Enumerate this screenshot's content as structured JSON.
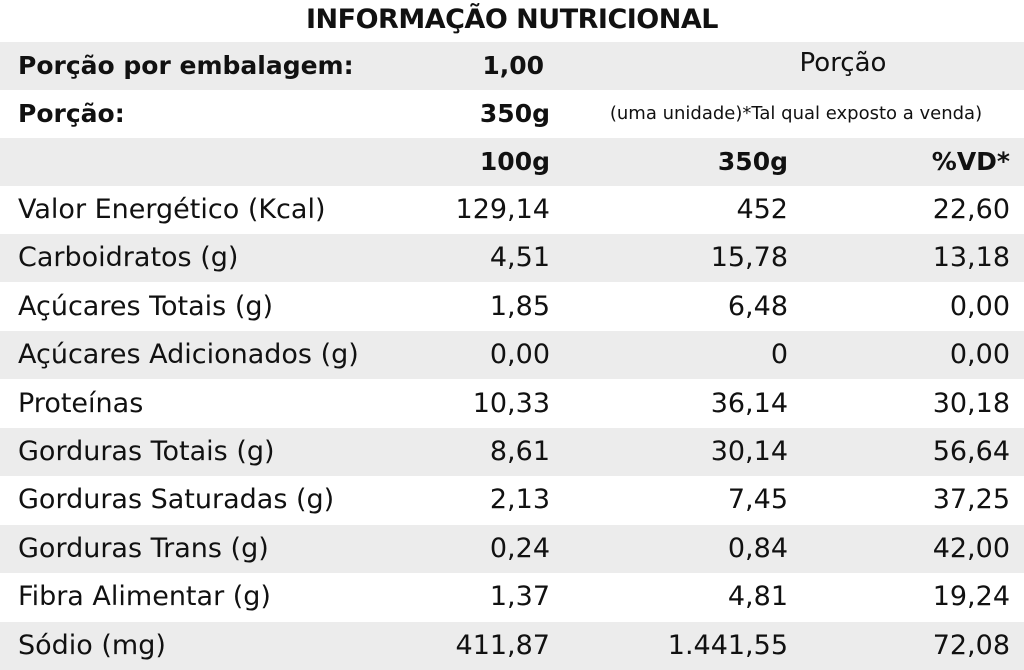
{
  "title": "INFORMAÇÃO NUTRICIONAL",
  "header": {
    "servings_label": "Porção por embalagem:",
    "servings_value": "1,00",
    "portion_word": "Porção",
    "portion_label": "Porção:",
    "portion_value": "350g",
    "portion_note": "(uma unidade)*Tal qual exposto a venda)",
    "col_100g": "100g",
    "col_350g": "350g",
    "col_vd": "%VD*"
  },
  "rows": [
    {
      "label": "Valor Energético (Kcal)",
      "per100": "129,14",
      "per350": "452",
      "vd": "22,60"
    },
    {
      "label": "Carboidratos (g)",
      "per100": "4,51",
      "per350": "15,78",
      "vd": "13,18"
    },
    {
      "label": "Açúcares Totais (g)",
      "per100": "1,85",
      "per350": "6,48",
      "vd": "0,00"
    },
    {
      "label": "Açúcares Adicionados (g)",
      "per100": "0,00",
      "per350": "0",
      "vd": "0,00"
    },
    {
      "label": "Proteínas",
      "per100": "10,33",
      "per350": "36,14",
      "vd": "30,18"
    },
    {
      "label": "Gorduras Totais (g)",
      "per100": "8,61",
      "per350": "30,14",
      "vd": "56,64"
    },
    {
      "label": "Gorduras Saturadas (g)",
      "per100": "2,13",
      "per350": "7,45",
      "vd": "37,25"
    },
    {
      "label": "Gorduras Trans (g)",
      "per100": "0,24",
      "per350": "0,84",
      "vd": "42,00"
    },
    {
      "label": "Fibra Alimentar (g)",
      "per100": "1,37",
      "per350": "4,81",
      "vd": "19,24"
    },
    {
      "label": "Sódio (mg)",
      "per100": "411,87",
      "per350": "1.441,55",
      "vd": "72,08"
    }
  ],
  "colors": {
    "shaded_row": "#ececec",
    "white_row": "#ffffff",
    "text": "#111111"
  }
}
